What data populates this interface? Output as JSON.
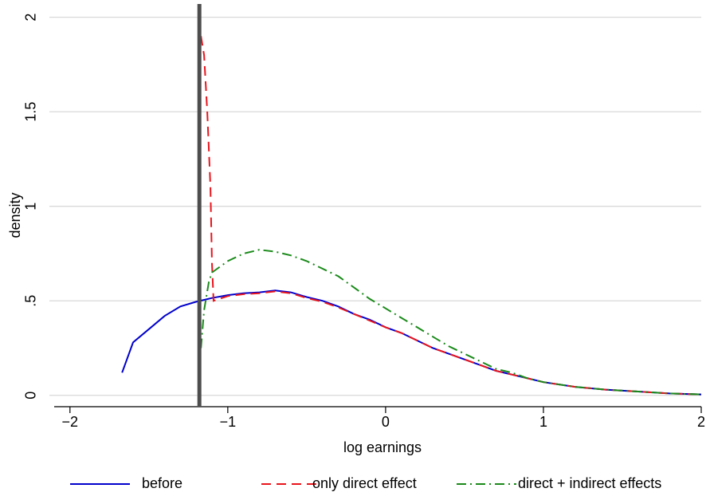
{
  "chart_data": {
    "type": "line",
    "x_label": "log earnings",
    "y_label": "density",
    "xlim": [
      -2.1,
      2.0
    ],
    "ylim": [
      -0.06,
      2.07
    ],
    "xticks": [
      {
        "value": -2,
        "label": "−2"
      },
      {
        "value": -1,
        "label": "−1"
      },
      0,
      1,
      2
    ],
    "yticks": [
      0,
      {
        "value": 0.5,
        "label": ".5"
      },
      1,
      1.5,
      2
    ],
    "grid": true,
    "reference_line": -1.18,
    "legend": "bottom",
    "series": [
      {
        "name": "before",
        "color": "#0000cc",
        "dash": "solid",
        "x": [
          -1.67,
          -1.6,
          -1.5,
          -1.4,
          -1.3,
          -1.2,
          -1.1,
          -1.0,
          -0.9,
          -0.8,
          -0.7,
          -0.6,
          -0.5,
          -0.4,
          -0.3,
          -0.2,
          -0.1,
          0,
          0.1,
          0.2,
          0.3,
          0.4,
          0.5,
          0.6,
          0.7,
          0.8,
          0.9,
          1.0,
          1.2,
          1.4,
          1.6,
          1.8,
          2.0
        ],
        "values": [
          0.12,
          0.28,
          0.35,
          0.42,
          0.47,
          0.495,
          0.515,
          0.53,
          0.54,
          0.545,
          0.555,
          0.545,
          0.52,
          0.5,
          0.47,
          0.43,
          0.4,
          0.36,
          0.33,
          0.29,
          0.25,
          0.22,
          0.19,
          0.16,
          0.13,
          0.11,
          0.09,
          0.07,
          0.045,
          0.03,
          0.02,
          0.01,
          0.005
        ]
      },
      {
        "name": "only direct effect",
        "color": "#e8141c",
        "dash": "dashed",
        "x": [
          -1.17,
          -1.15,
          -1.13,
          -1.11,
          -1.1,
          -1.09,
          -1.0,
          -0.9,
          -0.8,
          -0.7,
          -0.6,
          -0.5,
          -0.4,
          -0.3,
          -0.2,
          -0.1,
          0,
          0.1,
          0.2,
          0.3,
          0.4,
          0.5,
          0.6,
          0.7,
          0.8,
          0.9,
          1.0,
          1.2,
          1.4,
          1.6,
          1.8,
          2.0
        ],
        "values": [
          1.9,
          1.8,
          1.5,
          1.1,
          0.7,
          0.5,
          0.525,
          0.535,
          0.54,
          0.55,
          0.54,
          0.515,
          0.495,
          0.465,
          0.43,
          0.395,
          0.36,
          0.33,
          0.29,
          0.25,
          0.22,
          0.19,
          0.16,
          0.13,
          0.11,
          0.09,
          0.07,
          0.045,
          0.03,
          0.02,
          0.01,
          0.005
        ]
      },
      {
        "name": "direct + indirect effects",
        "color": "#1a8a1a",
        "dash": "dashdot",
        "x": [
          -1.17,
          -1.15,
          -1.12,
          -1.1,
          -1.0,
          -0.9,
          -0.8,
          -0.7,
          -0.6,
          -0.5,
          -0.4,
          -0.3,
          -0.2,
          -0.1,
          0,
          0.1,
          0.2,
          0.3,
          0.4,
          0.5,
          0.6,
          0.7,
          0.8,
          0.9,
          1.0,
          1.2,
          1.4,
          1.6,
          1.8,
          2.0
        ],
        "values": [
          0.25,
          0.45,
          0.6,
          0.65,
          0.71,
          0.75,
          0.77,
          0.76,
          0.74,
          0.71,
          0.67,
          0.63,
          0.57,
          0.51,
          0.46,
          0.41,
          0.36,
          0.31,
          0.26,
          0.22,
          0.18,
          0.14,
          0.12,
          0.09,
          0.07,
          0.045,
          0.03,
          0.02,
          0.01,
          0.005
        ]
      }
    ]
  }
}
